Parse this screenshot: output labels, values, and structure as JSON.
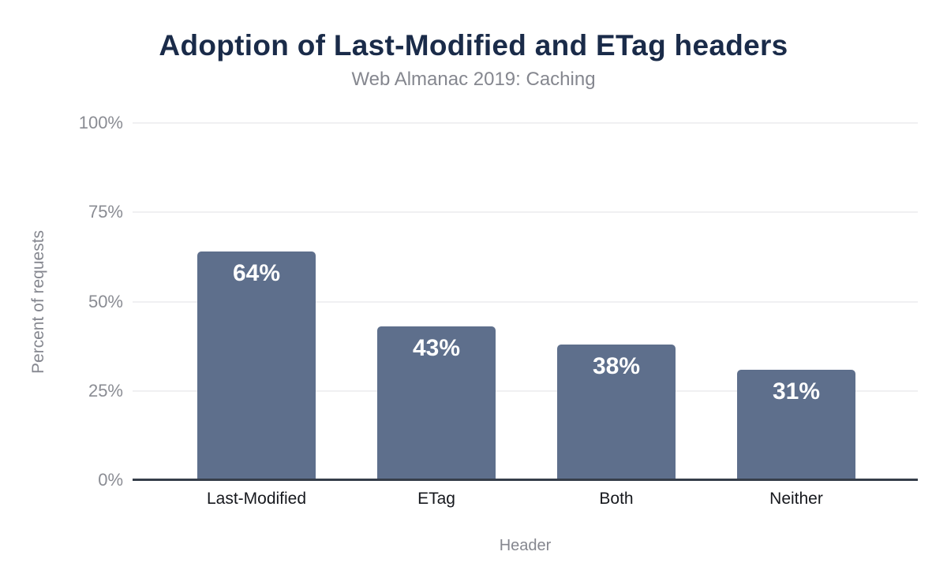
{
  "chart_data": {
    "type": "bar",
    "title": "Adoption of Last-Modified and ETag headers",
    "subtitle": "Web Almanac 2019: Caching",
    "xlabel": "Header",
    "ylabel": "Percent of requests",
    "categories": [
      "Last-Modified",
      "ETag",
      "Both",
      "Neither"
    ],
    "values": [
      64,
      43,
      38,
      31
    ],
    "value_labels": [
      "64%",
      "43%",
      "38%",
      "31%"
    ],
    "ylim": [
      0,
      100
    ],
    "yticks": [
      0,
      25,
      50,
      75,
      100
    ],
    "ytick_labels": [
      "0%",
      "25%",
      "50%",
      "75%",
      "100%"
    ],
    "grid": true,
    "legend_position": "none",
    "colors": {
      "bar": "#5e6f8c",
      "title": "#1a2b49",
      "subtitle": "#85878f",
      "ytick_text": "#8a8c93",
      "xtick_text": "#16181d",
      "axis_title": "#85878f",
      "gridline": "#f0f0f2",
      "axis_line": "#363e4a",
      "value_label": "#ffffff",
      "background": "#ffffff"
    }
  }
}
